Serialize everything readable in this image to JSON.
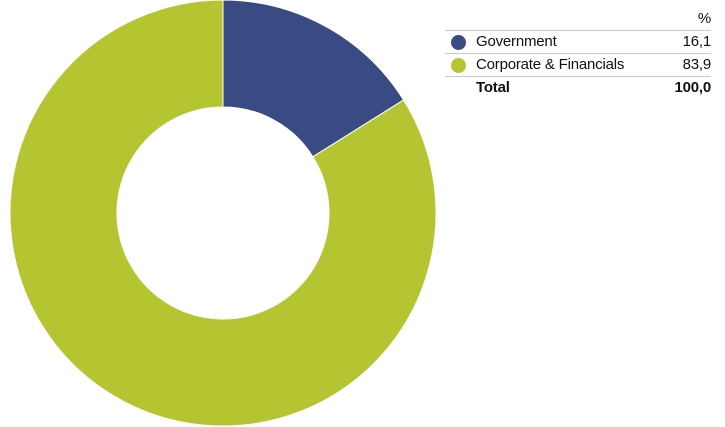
{
  "chart_data": {
    "type": "pie",
    "subtype": "donut",
    "unit_header": "%",
    "series": [
      {
        "name": "Government",
        "value": 16.1,
        "display": "16,1",
        "color": "#3a4a82"
      },
      {
        "name": "Corporate & Financials",
        "value": 83.9,
        "display": "83,9",
        "color": "#b5c532"
      }
    ],
    "total": {
      "label": "Total",
      "display": "100,0",
      "value": 100.0
    },
    "legend_position": "top-right"
  }
}
